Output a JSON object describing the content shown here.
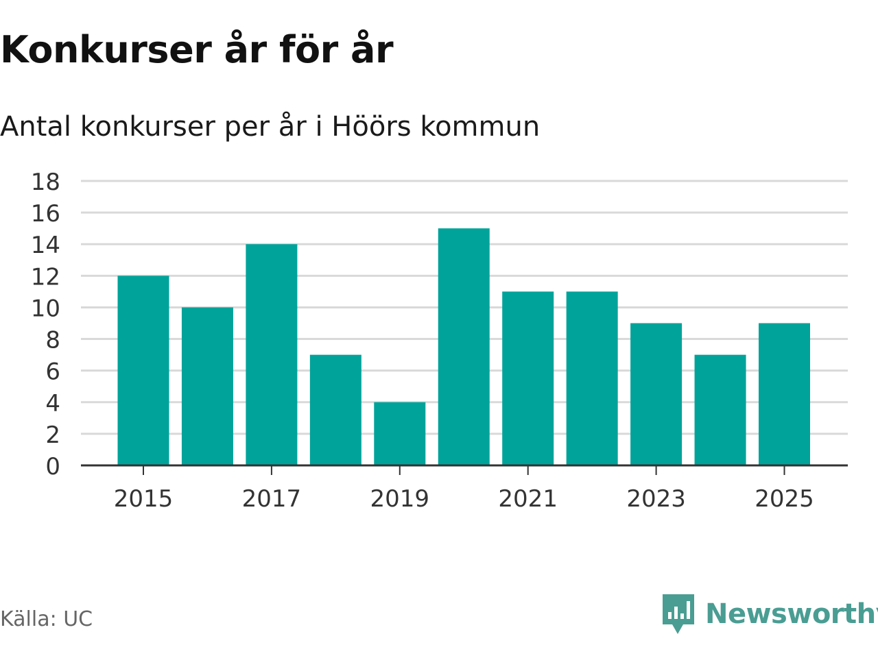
{
  "title": "Konkurser år för år",
  "subtitle": "Antal konkurser per år i Höörs kommun",
  "source": "Källa: UC",
  "brand": {
    "name": "Newsworthy",
    "logo_icon": "newsworthy-chart-bubble-icon"
  },
  "colors": {
    "bar": "#00a39a",
    "grid": "#d9d9d9",
    "axis": "#333333",
    "brand": "#4a9d93",
    "text": "#111111",
    "source": "#666666"
  },
  "chart_data": {
    "type": "bar",
    "categories": [
      "2015",
      "2016",
      "2017",
      "2018",
      "2019",
      "2020",
      "2021",
      "2022",
      "2023",
      "2024",
      "2025"
    ],
    "values": [
      12,
      10,
      14,
      7,
      4,
      15,
      11,
      11,
      9,
      7,
      9
    ],
    "xticks": [
      "2015",
      "2017",
      "2019",
      "2021",
      "2023",
      "2025"
    ],
    "yticks": [
      0,
      2,
      4,
      6,
      8,
      10,
      12,
      14,
      16,
      18
    ],
    "ylim": [
      0,
      18
    ],
    "grid": true,
    "legend": "none"
  }
}
